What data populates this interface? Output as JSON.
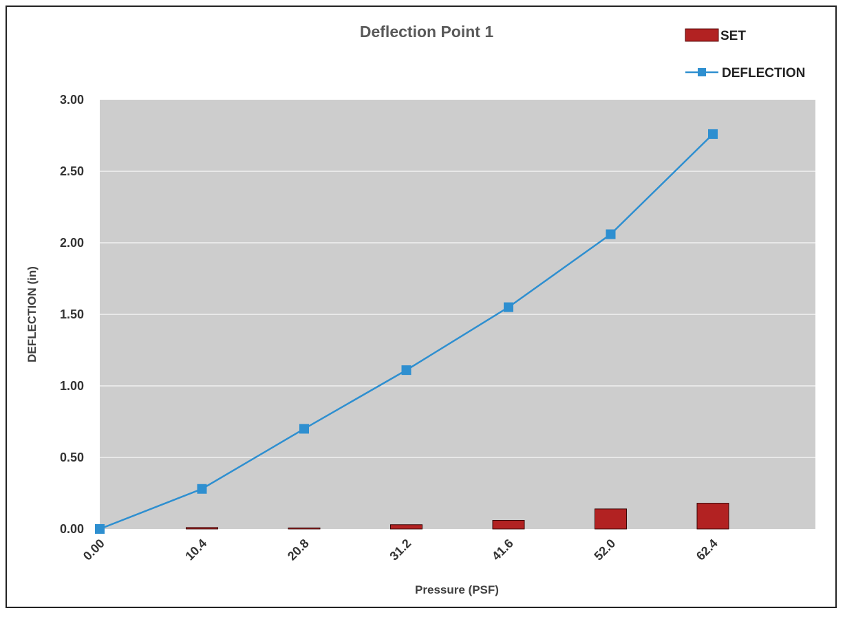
{
  "chart_data": {
    "type": "bar",
    "title": "Deflection Point 1",
    "xlabel": "Pressure (PSF)",
    "ylabel": "DEFLECTION (in)",
    "categories": [
      "0.00",
      "10.4",
      "20.8",
      "31.2",
      "41.6",
      "52.0",
      "62.4"
    ],
    "ylim": [
      0,
      3.0
    ],
    "yticks": [
      "0.00",
      "0.50",
      "1.00",
      "1.50",
      "2.00",
      "2.50",
      "3.00"
    ],
    "grid": true,
    "legend": "top-right",
    "series": [
      {
        "name": "SET",
        "type": "bar",
        "color": "#B22222",
        "values": [
          0.0,
          0.01,
          0.005,
          0.03,
          0.06,
          0.14,
          0.18
        ]
      },
      {
        "name": "DEFLECTION",
        "type": "line",
        "color": "#2E8FD0",
        "marker": "square",
        "values": [
          0.0,
          0.28,
          0.7,
          1.11,
          1.55,
          2.06,
          2.76
        ]
      }
    ],
    "plot_background": "#CDCDCD"
  }
}
